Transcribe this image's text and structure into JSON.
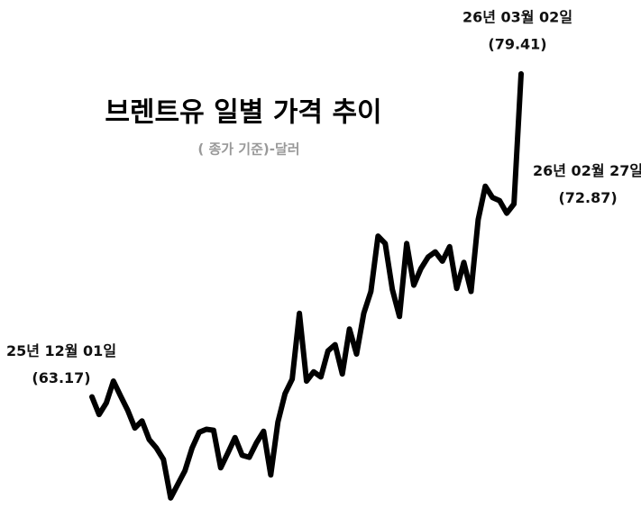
{
  "chart_data": {
    "type": "line",
    "title": "브렌트유 일별 가격 추이",
    "subtitle": "( 종가 기준)-달러",
    "categories": [
      "25년 12월 01일",
      null,
      null,
      null,
      null,
      null,
      null,
      null,
      null,
      null,
      null,
      null,
      null,
      null,
      null,
      null,
      null,
      null,
      null,
      null,
      null,
      null,
      null,
      null,
      null,
      null,
      null,
      null,
      null,
      null,
      null,
      null,
      null,
      null,
      null,
      null,
      null,
      null,
      null,
      null,
      null,
      null,
      null,
      null,
      null,
      null,
      null,
      null,
      null,
      null,
      null,
      null,
      null,
      null,
      null,
      null,
      null,
      null,
      null,
      "26년 02월 27일",
      "26년 03월 02일"
    ],
    "values": [
      63.17,
      62.28,
      62.86,
      63.96,
      63.22,
      62.49,
      61.6,
      61.96,
      61.02,
      60.6,
      60.02,
      58.08,
      58.77,
      59.45,
      60.6,
      61.39,
      61.54,
      61.49,
      59.6,
      60.34,
      61.12,
      60.23,
      60.13,
      60.86,
      61.44,
      59.24,
      61.91,
      63.33,
      64.06,
      67.37,
      63.96,
      64.43,
      64.17,
      65.48,
      65.79,
      64.32,
      66.58,
      65.32,
      67.37,
      68.47,
      71.25,
      70.88,
      68.57,
      67.21,
      70.88,
      68.78,
      69.62,
      70.2,
      70.46,
      69.99,
      70.72,
      68.62,
      69.93,
      68.47,
      72.08,
      73.76,
      73.19,
      73.03,
      72.4,
      72.87,
      79.41
    ],
    "value_labels": [
      "(63.17)",
      null,
      null,
      null,
      null,
      null,
      null,
      null,
      null,
      null,
      null,
      null,
      null,
      null,
      null,
      null,
      null,
      null,
      null,
      null,
      null,
      null,
      null,
      null,
      null,
      null,
      null,
      null,
      null,
      null,
      null,
      null,
      null,
      null,
      null,
      null,
      null,
      null,
      null,
      null,
      null,
      null,
      null,
      null,
      null,
      null,
      null,
      null,
      null,
      null,
      null,
      null,
      null,
      null,
      null,
      null,
      null,
      null,
      null,
      "(72.87)",
      "(79.41)"
    ],
    "color": "#000000",
    "ylim": [
      57.8,
      80
    ]
  }
}
